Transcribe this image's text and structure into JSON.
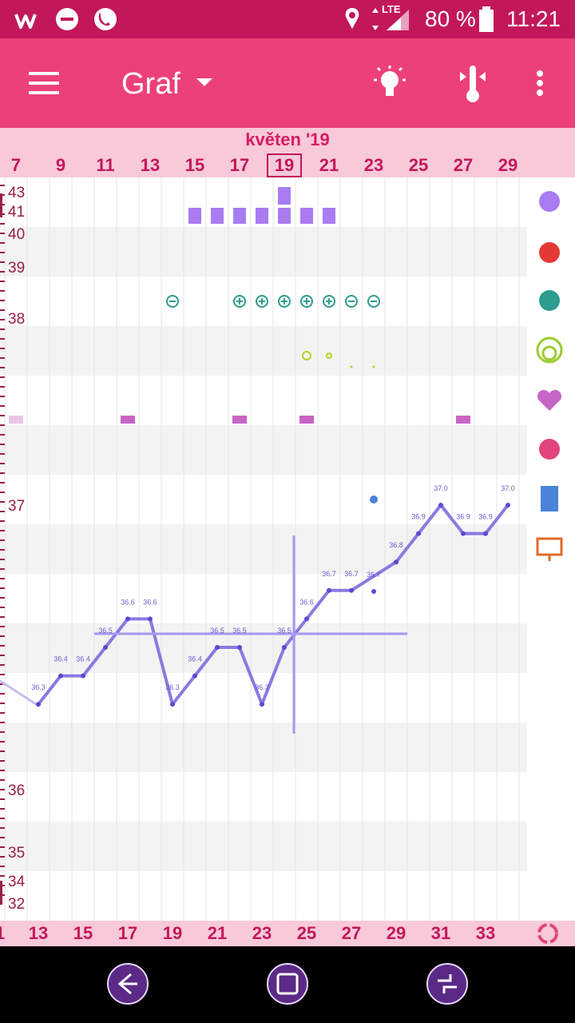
{
  "status_bar": {
    "battery": "80 %",
    "time": "11:21",
    "network": "LTE"
  },
  "toolbar": {
    "title": "Graf",
    "icons": [
      "menu-icon",
      "dropdown-icon",
      "lightbulb-icon",
      "thermometer-icon",
      "more-icon"
    ]
  },
  "chart_header": {
    "month": "květen '19",
    "day_labels": [
      "7",
      "9",
      "11",
      "13",
      "15",
      "17",
      "19",
      "21",
      "23",
      "25",
      "27",
      "29"
    ],
    "selected_day": "19"
  },
  "y_axis_labels": [
    "43",
    "41",
    "40",
    "39",
    "38",
    "37",
    "36",
    "35",
    "34",
    "32"
  ],
  "bottom_day_labels": [
    "1",
    "13",
    "15",
    "17",
    "19",
    "21",
    "23",
    "25",
    "27",
    "29",
    "31",
    "33"
  ],
  "side_icons": [
    "flower-icon",
    "drop-icon",
    "splash-icon",
    "rings-icon",
    "heart-icon",
    "symptom-icon",
    "note-icon",
    "monitor-icon",
    "cycle-icon"
  ],
  "chart_data": {
    "type": "line",
    "series": [
      {
        "values": [
          36.3,
          36.4,
          36.4,
          36.5,
          36.6,
          36.6,
          36.3,
          36.4,
          36.5,
          36.5,
          36.3,
          36.5,
          36.6,
          36.7,
          36.7,
          36.7,
          36.8,
          36.9,
          37.0,
          36.9,
          36.9,
          37.0
        ],
        "value_labels": [
          "36.3",
          "36.4",
          "36.4",
          "36.5",
          "36.6",
          "36.6",
          "36.3",
          "36.4",
          "36.5",
          "36.5",
          "36.3",
          "36.5",
          "36.6",
          "36.7",
          "36.7",
          "36.7",
          "36.8",
          "36.9",
          "37.0",
          "36.9",
          "36.9",
          "37.0"
        ]
      }
    ],
    "coverline": 36.5
  },
  "nav": {
    "back": "back-icon",
    "home": "home-icon",
    "recent": "recent-icon"
  }
}
